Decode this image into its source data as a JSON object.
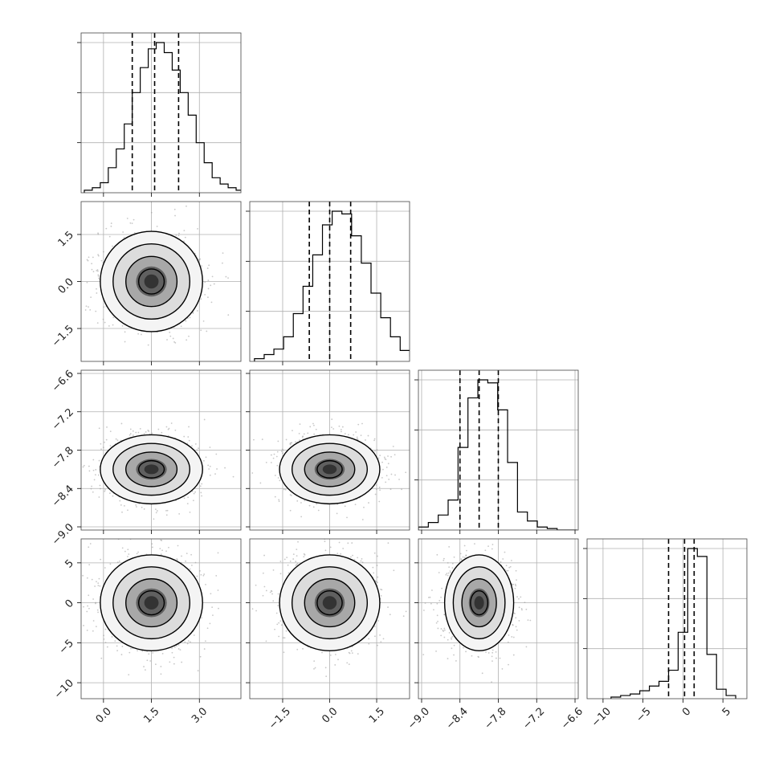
{
  "chart_data": {
    "type": "corner",
    "parameters": [
      {
        "range": [
          -0.7,
          4.3
        ],
        "ticks": [
          "0.0",
          "1.5",
          "3.0"
        ],
        "tick_values": [
          0.0,
          1.5,
          3.0
        ],
        "quantiles": [
          0.9,
          1.6,
          2.35
        ],
        "hist_bins": {
          "start": -0.6,
          "width": 0.25,
          "counts": [
            2,
            4,
            8,
            20,
            35,
            55,
            80,
            100,
            115,
            120,
            112,
            98,
            80,
            62,
            40,
            24,
            12,
            7,
            4,
            2,
            1
          ]
        }
      },
      {
        "range": [
          -2.55,
          2.55
        ],
        "ticks": [
          "-1.5",
          "0.0",
          "1.5"
        ],
        "tick_values": [
          -1.5,
          0.0,
          1.5
        ],
        "quantiles": [
          -0.65,
          0.0,
          0.67
        ],
        "hist_bins": {
          "start": -2.4,
          "width": 0.31,
          "counts": [
            2,
            5,
            9,
            18,
            35,
            55,
            78,
            100,
            110,
            108,
            92,
            72,
            50,
            32,
            18,
            8,
            4
          ]
        }
      },
      {
        "range": [
          -9.05,
          -6.55
        ],
        "ticks": [
          "-9.0",
          "-8.4",
          "-7.8",
          "-7.2",
          "-6.6"
        ],
        "tick_values": [
          -9.0,
          -8.4,
          -7.8,
          -7.2,
          -6.6
        ],
        "quantiles": [
          -8.4,
          -8.1,
          -7.8
        ],
        "hist_bins": {
          "start": -9.05,
          "width": 0.155,
          "counts": [
            2,
            5,
            10,
            20,
            55,
            88,
            100,
            98,
            80,
            45,
            12,
            6,
            2,
            1,
            0,
            0
          ]
        }
      },
      {
        "range": [
          -12.0,
          8.0
        ],
        "ticks": [
          "-10",
          "-5",
          "0",
          "5"
        ],
        "tick_values": [
          -10,
          -5,
          0,
          5
        ],
        "quantiles": [
          -1.8,
          0.2,
          1.4
        ],
        "hist_bins": {
          "start": -9.0,
          "width": 1.2,
          "counts": [
            1,
            2,
            3,
            5,
            8,
            11,
            18,
            42,
            95,
            90,
            28,
            6,
            2
          ]
        }
      }
    ],
    "two_d": {
      "centers": [
        1.5,
        0.0,
        -8.1,
        0.0
      ],
      "sigmas": [
        0.8,
        0.8,
        0.27,
        3.0
      ],
      "contour_levels_sigma": [
        0.5,
        1.0,
        1.5,
        2.0
      ]
    },
    "grid": true,
    "style": {
      "line": "#000000",
      "grid": "#b0b0b0",
      "scatter": "#9a9a9a",
      "fill_dark": "#333333"
    }
  }
}
